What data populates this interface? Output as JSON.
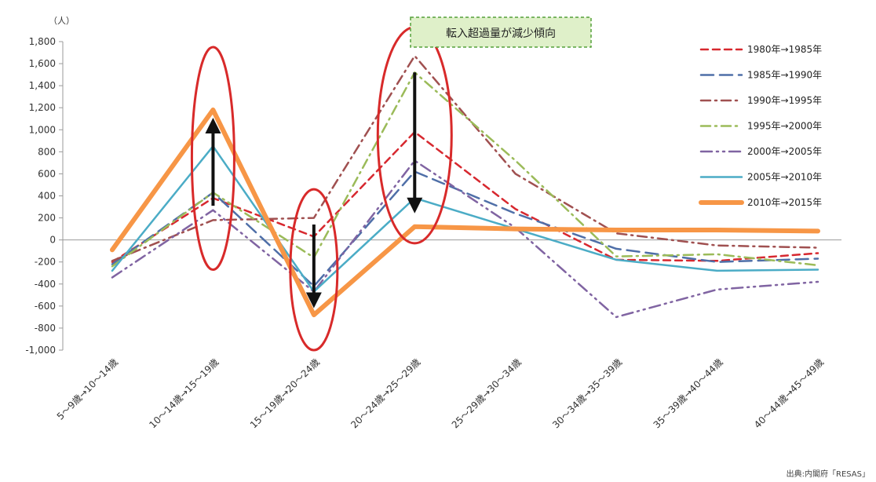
{
  "chart_data": {
    "type": "line",
    "ylabel": "（人）",
    "ylim": [
      -1000,
      1800
    ],
    "yticks": [
      1800,
      1600,
      1400,
      1200,
      1000,
      800,
      600,
      400,
      200,
      0,
      -200,
      -400,
      -600,
      -800,
      -1000
    ],
    "ytick_labels": [
      "1,800",
      "1,600",
      "1,400",
      "1,200",
      "1,000",
      "800",
      "600",
      "400",
      "200",
      "0",
      "-200",
      "-400",
      "-600",
      "-800",
      "-1,000"
    ],
    "categories": [
      "5～9歳→10～14歳",
      "10～14歳→15～19歳",
      "15～19歳→20～24歳",
      "20～24歳→25～29歳",
      "25～29歳→30～34歳",
      "30～34歳→35～39歳",
      "35～39歳→40～44歳",
      "40～44歳→45～49歳"
    ],
    "legend_position": "right",
    "series": [
      {
        "name": "1980年→1985年",
        "color": "#d7282f",
        "dash": "dash",
        "values": [
          -200,
          380,
          30,
          980,
          280,
          -180,
          -190,
          -120
        ]
      },
      {
        "name": "1985年→1990年",
        "color": "#4f6fa8",
        "dash": "longdash",
        "values": [
          -220,
          430,
          -420,
          620,
          240,
          -80,
          -200,
          -170
        ]
      },
      {
        "name": "1990年→1995年",
        "color": "#a05050",
        "dash": "dashdot",
        "values": [
          -190,
          180,
          200,
          1670,
          600,
          60,
          -50,
          -70
        ]
      },
      {
        "name": "1995年→2000年",
        "color": "#9bbb59",
        "dash": "dashdot",
        "values": [
          -240,
          430,
          -160,
          1520,
          720,
          -150,
          -130,
          -230
        ]
      },
      {
        "name": "2000年→2005年",
        "color": "#8064a2",
        "dash": "dashdotdot",
        "values": [
          -340,
          270,
          -470,
          720,
          110,
          -700,
          -450,
          -380
        ]
      },
      {
        "name": "2005年→2010年",
        "color": "#4bacc6",
        "dash": "solid",
        "values": [
          -280,
          850,
          -470,
          380,
          100,
          -180,
          -280,
          -270
        ]
      },
      {
        "name": "2010年→2015年",
        "color": "#f79646",
        "dash": "thick",
        "values": [
          -90,
          1180,
          -680,
          120,
          100,
          90,
          90,
          80
        ]
      }
    ],
    "annotations": {
      "callout": "転入超過量が減少傾向",
      "arrows": [
        {
          "category_index": 1,
          "from": 310,
          "to": 1080
        },
        {
          "category_index": 2,
          "from": 140,
          "to": -590
        },
        {
          "category_index": 3,
          "from": 1520,
          "to": 270
        }
      ],
      "ellipses": [
        {
          "category_index": 1,
          "center": 740,
          "half_height": 1010
        },
        {
          "category_index": 2,
          "center": -270,
          "half_height": 730
        },
        {
          "category_index": 3,
          "center": 950,
          "half_height": 980
        }
      ]
    },
    "source": "出典:内閣府「RESAS」"
  }
}
